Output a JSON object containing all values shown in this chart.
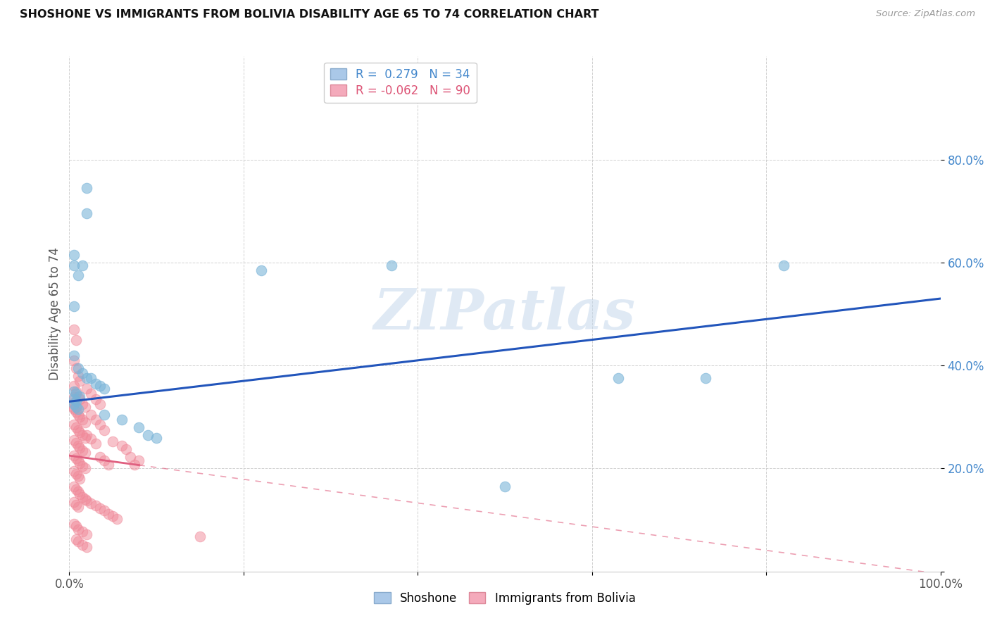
{
  "title": "SHOSHONE VS IMMIGRANTS FROM BOLIVIA DISABILITY AGE 65 TO 74 CORRELATION CHART",
  "source": "Source: ZipAtlas.com",
  "ylabel": "Disability Age 65 to 74",
  "watermark": "ZIPatlas",
  "shoshone_color": "#7ab4d8",
  "bolivia_color": "#f08898",
  "shoshone_line_color": "#2255bb",
  "bolivia_line_color": "#e06080",
  "shoshone_line_intercept": 0.33,
  "shoshone_line_slope": 0.2,
  "bolivia_line_intercept": 0.225,
  "bolivia_line_slope": -0.23,
  "shoshone_points": [
    [
      0.02,
      0.745
    ],
    [
      0.02,
      0.695
    ],
    [
      0.005,
      0.615
    ],
    [
      0.01,
      0.575
    ],
    [
      0.005,
      0.595
    ],
    [
      0.015,
      0.595
    ],
    [
      0.005,
      0.515
    ],
    [
      0.22,
      0.585
    ],
    [
      0.005,
      0.42
    ],
    [
      0.01,
      0.395
    ],
    [
      0.015,
      0.385
    ],
    [
      0.02,
      0.375
    ],
    [
      0.025,
      0.375
    ],
    [
      0.03,
      0.365
    ],
    [
      0.035,
      0.36
    ],
    [
      0.04,
      0.355
    ],
    [
      0.005,
      0.35
    ],
    [
      0.008,
      0.345
    ],
    [
      0.012,
      0.34
    ],
    [
      0.005,
      0.335
    ],
    [
      0.008,
      0.33
    ],
    [
      0.005,
      0.325
    ],
    [
      0.008,
      0.32
    ],
    [
      0.01,
      0.315
    ],
    [
      0.37,
      0.595
    ],
    [
      0.63,
      0.375
    ],
    [
      0.73,
      0.375
    ],
    [
      0.82,
      0.595
    ],
    [
      0.5,
      0.165
    ],
    [
      0.04,
      0.305
    ],
    [
      0.06,
      0.295
    ],
    [
      0.08,
      0.28
    ],
    [
      0.09,
      0.265
    ],
    [
      0.1,
      0.26
    ]
  ],
  "bolivia_points": [
    [
      0.005,
      0.47
    ],
    [
      0.008,
      0.45
    ],
    [
      0.005,
      0.41
    ],
    [
      0.008,
      0.395
    ],
    [
      0.01,
      0.38
    ],
    [
      0.012,
      0.37
    ],
    [
      0.005,
      0.36
    ],
    [
      0.008,
      0.35
    ],
    [
      0.01,
      0.34
    ],
    [
      0.012,
      0.335
    ],
    [
      0.015,
      0.325
    ],
    [
      0.018,
      0.32
    ],
    [
      0.005,
      0.315
    ],
    [
      0.008,
      0.31
    ],
    [
      0.01,
      0.305
    ],
    [
      0.012,
      0.3
    ],
    [
      0.015,
      0.295
    ],
    [
      0.018,
      0.29
    ],
    [
      0.005,
      0.285
    ],
    [
      0.008,
      0.28
    ],
    [
      0.01,
      0.275
    ],
    [
      0.012,
      0.27
    ],
    [
      0.015,
      0.265
    ],
    [
      0.018,
      0.26
    ],
    [
      0.005,
      0.255
    ],
    [
      0.008,
      0.25
    ],
    [
      0.01,
      0.245
    ],
    [
      0.012,
      0.24
    ],
    [
      0.015,
      0.235
    ],
    [
      0.018,
      0.23
    ],
    [
      0.005,
      0.225
    ],
    [
      0.008,
      0.22
    ],
    [
      0.01,
      0.215
    ],
    [
      0.012,
      0.21
    ],
    [
      0.015,
      0.205
    ],
    [
      0.018,
      0.2
    ],
    [
      0.005,
      0.195
    ],
    [
      0.008,
      0.19
    ],
    [
      0.01,
      0.185
    ],
    [
      0.012,
      0.18
    ],
    [
      0.02,
      0.355
    ],
    [
      0.025,
      0.345
    ],
    [
      0.03,
      0.335
    ],
    [
      0.035,
      0.325
    ],
    [
      0.025,
      0.305
    ],
    [
      0.03,
      0.295
    ],
    [
      0.035,
      0.285
    ],
    [
      0.04,
      0.275
    ],
    [
      0.02,
      0.265
    ],
    [
      0.025,
      0.258
    ],
    [
      0.03,
      0.248
    ],
    [
      0.05,
      0.252
    ],
    [
      0.06,
      0.245
    ],
    [
      0.065,
      0.238
    ],
    [
      0.035,
      0.222
    ],
    [
      0.04,
      0.215
    ],
    [
      0.045,
      0.208
    ],
    [
      0.07,
      0.222
    ],
    [
      0.08,
      0.215
    ],
    [
      0.075,
      0.208
    ],
    [
      0.005,
      0.165
    ],
    [
      0.008,
      0.16
    ],
    [
      0.01,
      0.155
    ],
    [
      0.012,
      0.15
    ],
    [
      0.015,
      0.145
    ],
    [
      0.018,
      0.14
    ],
    [
      0.005,
      0.135
    ],
    [
      0.008,
      0.13
    ],
    [
      0.01,
      0.125
    ],
    [
      0.02,
      0.138
    ],
    [
      0.025,
      0.132
    ],
    [
      0.03,
      0.128
    ],
    [
      0.035,
      0.122
    ],
    [
      0.04,
      0.118
    ],
    [
      0.045,
      0.112
    ],
    [
      0.05,
      0.108
    ],
    [
      0.055,
      0.102
    ],
    [
      0.005,
      0.092
    ],
    [
      0.008,
      0.088
    ],
    [
      0.01,
      0.082
    ],
    [
      0.015,
      0.078
    ],
    [
      0.02,
      0.072
    ],
    [
      0.008,
      0.062
    ],
    [
      0.01,
      0.058
    ],
    [
      0.015,
      0.052
    ],
    [
      0.02,
      0.048
    ],
    [
      0.15,
      0.068
    ],
    [
      0.005,
      0.338
    ],
    [
      0.005,
      0.328
    ],
    [
      0.005,
      0.318
    ]
  ]
}
